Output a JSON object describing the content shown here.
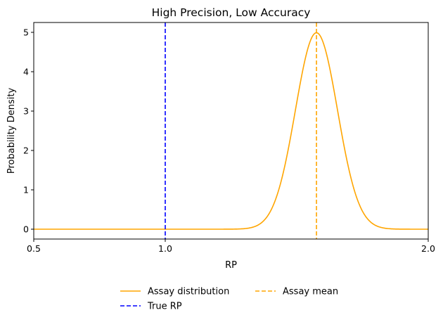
{
  "chart_data": {
    "type": "line",
    "title": "High Precision, Low Accuracy",
    "xlabel": "RP",
    "ylabel": "Probability Density",
    "xlim": [
      0.5,
      2.0
    ],
    "ylim": [
      -0.25,
      5.25
    ],
    "x_ticks": [
      0.5,
      1.0,
      2.0
    ],
    "x_tick_labels": [
      "0.5",
      "1.0",
      "2.0"
    ],
    "y_ticks": [
      0,
      1,
      2,
      3,
      4,
      5
    ],
    "y_tick_labels": [
      "0",
      "1",
      "2",
      "3",
      "4",
      "5"
    ],
    "grid": false,
    "legend_position": "bottom-center",
    "series": [
      {
        "name": "Assay distribution",
        "style": "solid",
        "color": "#ffa500",
        "distribution": "normal",
        "mean": 1.575,
        "sd": 0.08,
        "peak": 4.99
      }
    ],
    "vlines": [
      {
        "name": "True RP",
        "x": 1.0,
        "style": "dashed",
        "color": "#0000ff"
      },
      {
        "name": "Assay mean",
        "x": 1.575,
        "style": "dashed",
        "color": "#ffa500"
      }
    ],
    "legend": {
      "entries": [
        "Assay distribution",
        "True RP",
        "Assay mean"
      ]
    }
  }
}
